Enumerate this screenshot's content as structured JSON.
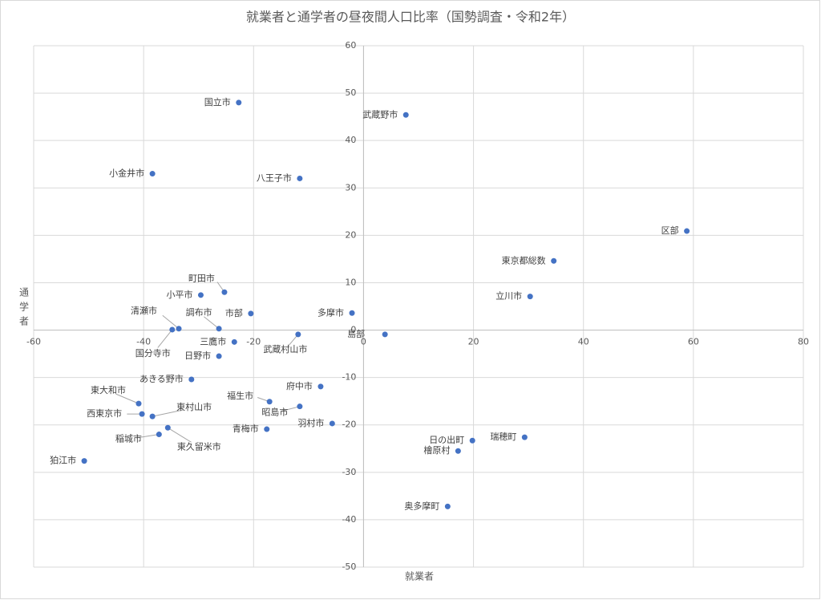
{
  "chart_data": {
    "type": "scatter",
    "title": "就業者と通学者の昼夜間人口比率（国勢調査・令和2年）",
    "xlabel": "就業者",
    "ylabel": "通学者",
    "color": "#4472c4",
    "grid": true,
    "point_labels": [
      "国立市",
      "武蔵野市",
      "小金井市",
      "八王子市",
      "区部",
      "東京都総数",
      "立川市",
      "町田市",
      "小平市",
      "市部",
      "多摩市",
      "清瀬市",
      "国分寺市",
      "調布市",
      "島部",
      "武蔵村山市",
      "三鷹市",
      "日野市",
      "あきる野市",
      "府中市",
      "福生市",
      "昭島市",
      "東大和市",
      "西東京市",
      "東村山市",
      "羽村市",
      "青梅市",
      "東久留米市",
      "稲城市",
      "日の出町",
      "瑞穂町",
      "檜原村",
      "狛江市",
      "奥多摩町"
    ],
    "x": [
      -22.7,
      7.7,
      -38.4,
      -11.6,
      58.8,
      34.6,
      30.3,
      -25.3,
      -29.6,
      -20.5,
      -2.1,
      -33.6,
      -34.8,
      -26.3,
      3.9,
      -11.9,
      -23.5,
      -26.3,
      -31.3,
      -7.8,
      -17.1,
      -11.6,
      -40.9,
      -40.3,
      -38.4,
      -5.7,
      -17.6,
      -35.6,
      -37.2,
      19.8,
      29.3,
      17.2,
      -50.8,
      15.3
    ],
    "values": [
      48.0,
      45.4,
      33.0,
      32.0,
      20.9,
      14.6,
      7.1,
      8.0,
      7.4,
      3.5,
      3.6,
      0.3,
      0.1,
      0.3,
      -0.9,
      -0.9,
      -2.5,
      -5.5,
      -10.4,
      -11.9,
      -15.1,
      -16.1,
      -15.5,
      -17.7,
      -18.2,
      -19.7,
      -20.9,
      -20.6,
      -22.0,
      -23.3,
      -22.6,
      -25.5,
      -27.6,
      -37.2
    ],
    "xlim": [
      -60,
      80
    ],
    "xticks": [
      -60,
      -40,
      -20,
      0,
      20,
      40,
      60,
      80
    ],
    "ylim": [
      -50,
      60
    ],
    "yticks": [
      -50,
      -40,
      -30,
      -20,
      -10,
      0,
      10,
      20,
      30,
      40,
      50,
      60
    ]
  }
}
